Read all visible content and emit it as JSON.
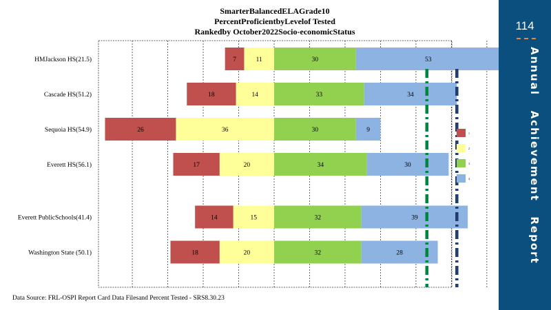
{
  "chart_data": {
    "type": "bar",
    "stacked": "diverging",
    "title_lines": [
      "SmarterBalancedELAGrade10",
      "PercentProficientbyLevelof Tested",
      "Rankedby October2022Socio-economicStatus"
    ],
    "categories": [
      "HMJackson HS(21.5)",
      "Cascade HS(51.2)",
      "Sequoia HS(54.9)",
      "Everett  HS(56.1)",
      "Everett PublicSchools(41.4)",
      "Washington State (50.1)"
    ],
    "category_positions": [
      0,
      1,
      2,
      3,
      4.5,
      5.5
    ],
    "series": [
      {
        "name": "1",
        "color": "#c0504d",
        "direction": "left",
        "values": [
          7,
          18,
          26,
          17,
          14,
          18
        ]
      },
      {
        "name": "2",
        "color": "#ffff99",
        "direction": "left",
        "values": [
          11,
          14,
          36,
          20,
          15,
          20
        ]
      },
      {
        "name": "3",
        "color": "#92d050",
        "direction": "right",
        "values": [
          30,
          33,
          30,
          34,
          32,
          32
        ]
      },
      {
        "name": "4",
        "color": "#8db3e2",
        "direction": "right",
        "values": [
          53,
          34,
          9,
          30,
          39,
          28
        ]
      }
    ],
    "reference_lines": [
      {
        "value": 56,
        "color": "#00853e",
        "style": "dash-dot"
      },
      {
        "value": 67,
        "color": "#1f3d6e",
        "style": "dash-dot"
      }
    ],
    "xlim": [
      -60,
      100
    ],
    "grid": true,
    "legend_position": "right"
  },
  "source_text": "Data Source: FRL-OSPI Report Card Data Filesand Percent  Tested - SRS8.30.23",
  "sidebar": {
    "page_number": "114",
    "title": "Annual   Achievement   Report",
    "background": "#0b4f7f",
    "accent": "#e8863a"
  }
}
